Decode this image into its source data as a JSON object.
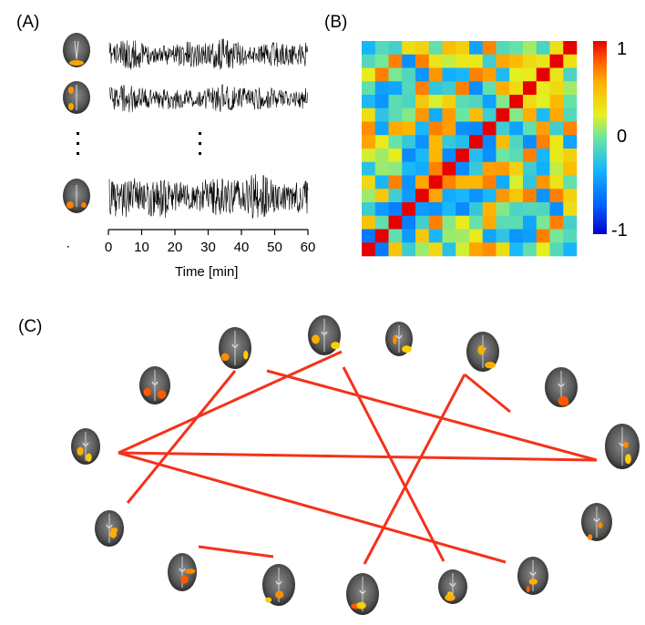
{
  "panels": {
    "a": "(A)",
    "b": "(B)",
    "c": "(C)"
  },
  "timeseries": {
    "xlabel": "Time [min]",
    "xticks": [
      "0",
      "10",
      "20",
      "30",
      "40",
      "50",
      "60"
    ],
    "xlim": [
      0,
      60
    ],
    "traces_shown": 3
  },
  "matrix": {
    "size": 16,
    "colorbar_ticks": [
      "1",
      "0",
      "-1"
    ],
    "colorbar_range": [
      -1,
      1
    ],
    "colormap": "jet"
  },
  "network": {
    "node_count": 16,
    "edge_color": "#f4321a",
    "edges": [
      [
        1,
        7
      ],
      [
        2,
        14
      ],
      [
        3,
        9
      ],
      [
        4,
        11
      ],
      [
        5,
        13
      ],
      [
        6,
        10
      ],
      [
        8,
        12
      ]
    ]
  }
}
